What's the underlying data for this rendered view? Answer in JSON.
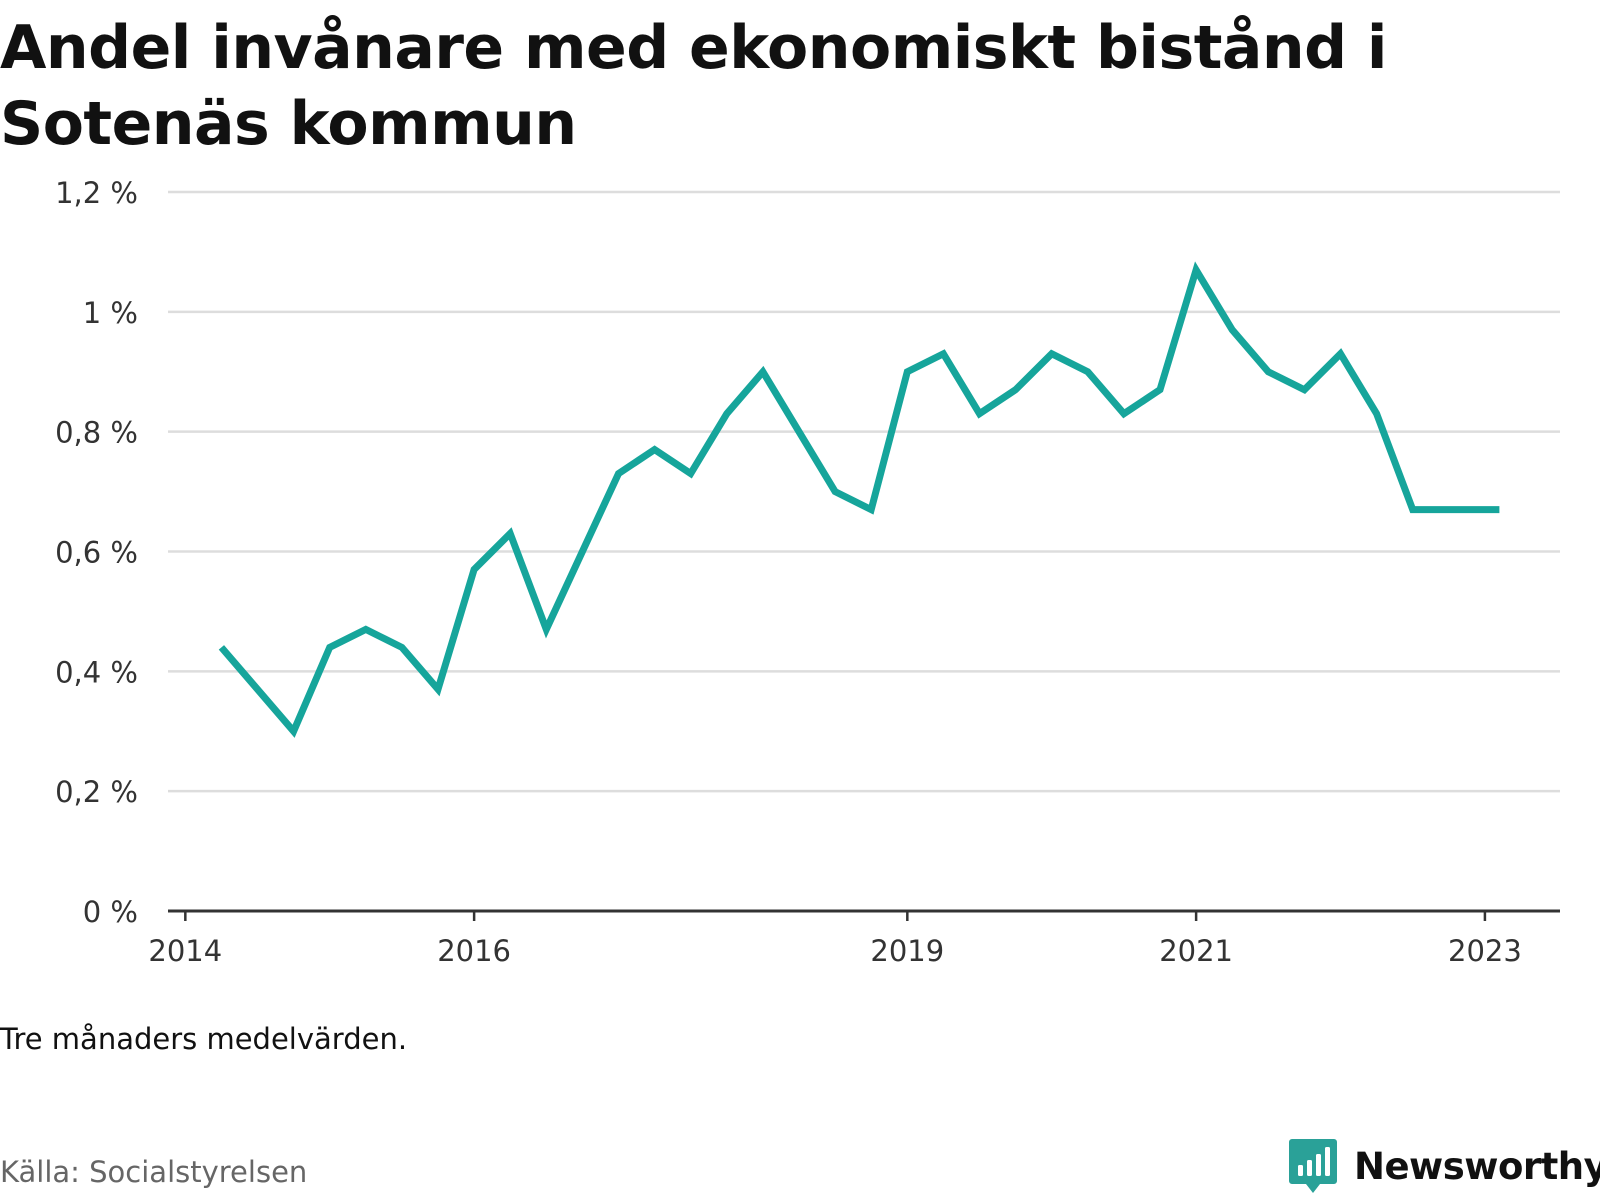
{
  "title": "Andel invånare med ekonomiskt bistånd i Sotenäs kommun",
  "note": "Tre månaders medelvärden.",
  "source": "Källa: Socialstyrelsen",
  "brand": {
    "name": "Newsworthy",
    "icon": "newsworthy-logo-icon"
  },
  "colors": {
    "line": "#16a59b",
    "grid": "#dddddd",
    "axis": "#333333",
    "brand": "#2aa198"
  },
  "chart_data": {
    "type": "line",
    "ylim": [
      0,
      1.2
    ],
    "yticks": [
      {
        "value": 0,
        "label": "0 %"
      },
      {
        "value": 0.2,
        "label": "0,2 %"
      },
      {
        "value": 0.4,
        "label": "0,4 %"
      },
      {
        "value": 0.6,
        "label": "0,6 %"
      },
      {
        "value": 0.8,
        "label": "0,8 %"
      },
      {
        "value": 1.0,
        "label": "1 %"
      },
      {
        "value": 1.2,
        "label": "1,2 %"
      }
    ],
    "xticks": [
      {
        "value": 2014.0,
        "label": "2014"
      },
      {
        "value": 2016.0,
        "label": "2016"
      },
      {
        "value": 2019.0,
        "label": "2019"
      },
      {
        "value": 2021.0,
        "label": "2021"
      },
      {
        "value": 2023.0,
        "label": "2023"
      }
    ],
    "xlim": [
      2013.88,
      2023.52
    ],
    "grid": true,
    "series": [
      {
        "points": [
          [
            2014.25,
            0.44
          ],
          [
            2014.5,
            0.37
          ],
          [
            2014.75,
            0.3
          ],
          [
            2015.0,
            0.44
          ],
          [
            2015.25,
            0.47
          ],
          [
            2015.5,
            0.44
          ],
          [
            2015.75,
            0.37
          ],
          [
            2016.0,
            0.57
          ],
          [
            2016.25,
            0.63
          ],
          [
            2016.5,
            0.47
          ],
          [
            2016.75,
            0.6
          ],
          [
            2017.0,
            0.73
          ],
          [
            2017.25,
            0.77
          ],
          [
            2017.5,
            0.73
          ],
          [
            2017.75,
            0.83
          ],
          [
            2018.0,
            0.9
          ],
          [
            2018.25,
            0.8
          ],
          [
            2018.5,
            0.7
          ],
          [
            2018.75,
            0.67
          ],
          [
            2019.0,
            0.9
          ],
          [
            2019.25,
            0.93
          ],
          [
            2019.5,
            0.83
          ],
          [
            2019.75,
            0.87
          ],
          [
            2020.0,
            0.93
          ],
          [
            2020.25,
            0.9
          ],
          [
            2020.5,
            0.83
          ],
          [
            2020.75,
            0.87
          ],
          [
            2021.0,
            1.07
          ],
          [
            2021.25,
            0.97
          ],
          [
            2021.5,
            0.9
          ],
          [
            2021.75,
            0.87
          ],
          [
            2022.0,
            0.93
          ],
          [
            2022.25,
            0.83
          ],
          [
            2022.5,
            0.67
          ],
          [
            2022.75,
            0.67
          ],
          [
            2023.0,
            0.67
          ],
          [
            2023.1,
            0.67
          ]
        ]
      }
    ]
  }
}
